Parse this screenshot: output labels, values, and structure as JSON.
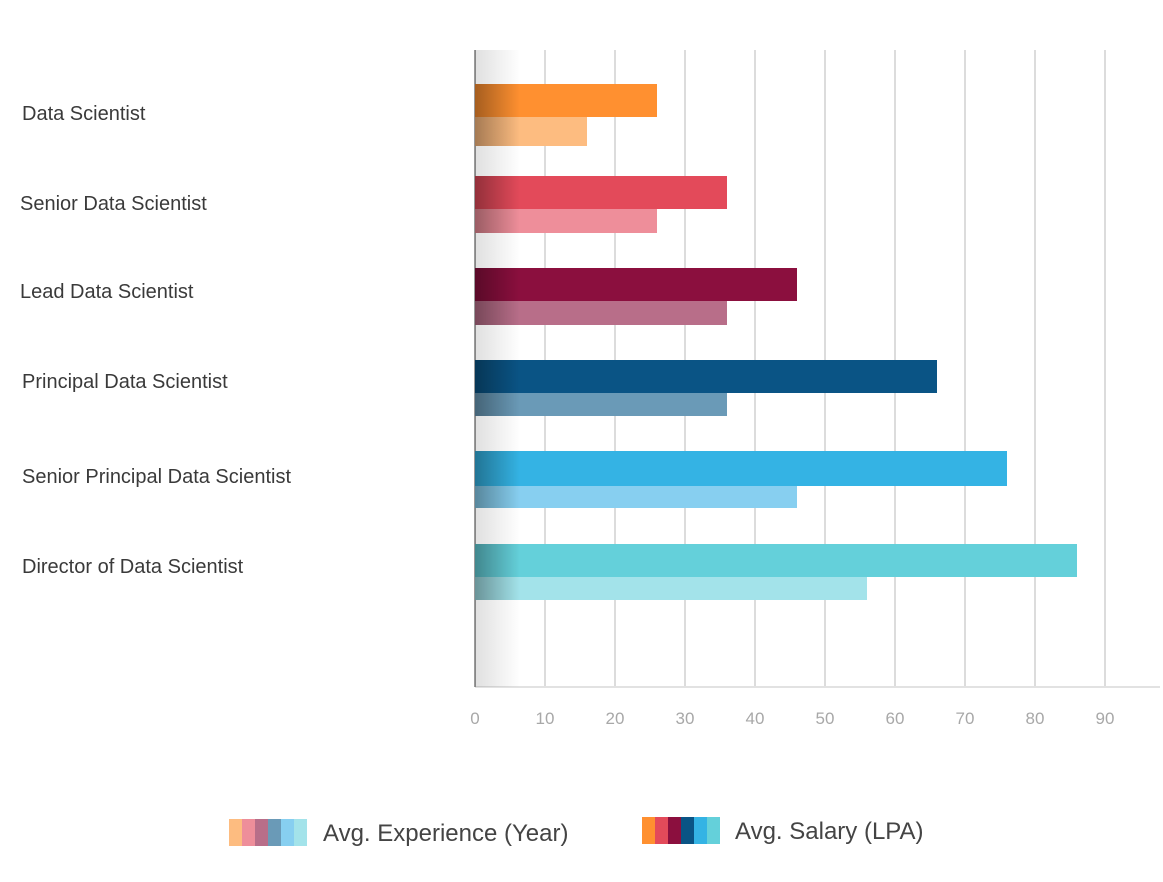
{
  "chart_data": {
    "type": "bar",
    "orientation": "horizontal",
    "categories": [
      "Data Scientist",
      "Senior Data Scientist",
      "Lead Data Scientist",
      "Principal Data Scientist",
      "Senior Principal Data Scientist",
      "Director of Data Scientist"
    ],
    "series": [
      {
        "name": "Avg. Salary (LPA)",
        "values": [
          26,
          36,
          46,
          66,
          76,
          86
        ],
        "colors": [
          "#FF9030",
          "#E34A5A",
          "#8B0F3E",
          "#0A5485",
          "#34B3E4",
          "#64D0DA"
        ]
      },
      {
        "name": "Avg. Experience (Year)",
        "values": [
          16,
          26,
          36,
          36,
          46,
          56
        ],
        "colors": [
          "#FDBC80",
          "#EE8E9A",
          "#B86E89",
          "#6A9AB7",
          "#87CFF0",
          "#A3E3EA"
        ]
      }
    ],
    "xticks": [
      0,
      10,
      20,
      30,
      40,
      50,
      60,
      70,
      80,
      90
    ],
    "xlim": [
      0,
      97
    ],
    "grid": true,
    "legend_order": [
      "Avg. Experience (Year)",
      "Avg. Salary (LPA)"
    ],
    "legend_placement": "bottom",
    "title": "",
    "xlabel": "",
    "ylabel": ""
  }
}
